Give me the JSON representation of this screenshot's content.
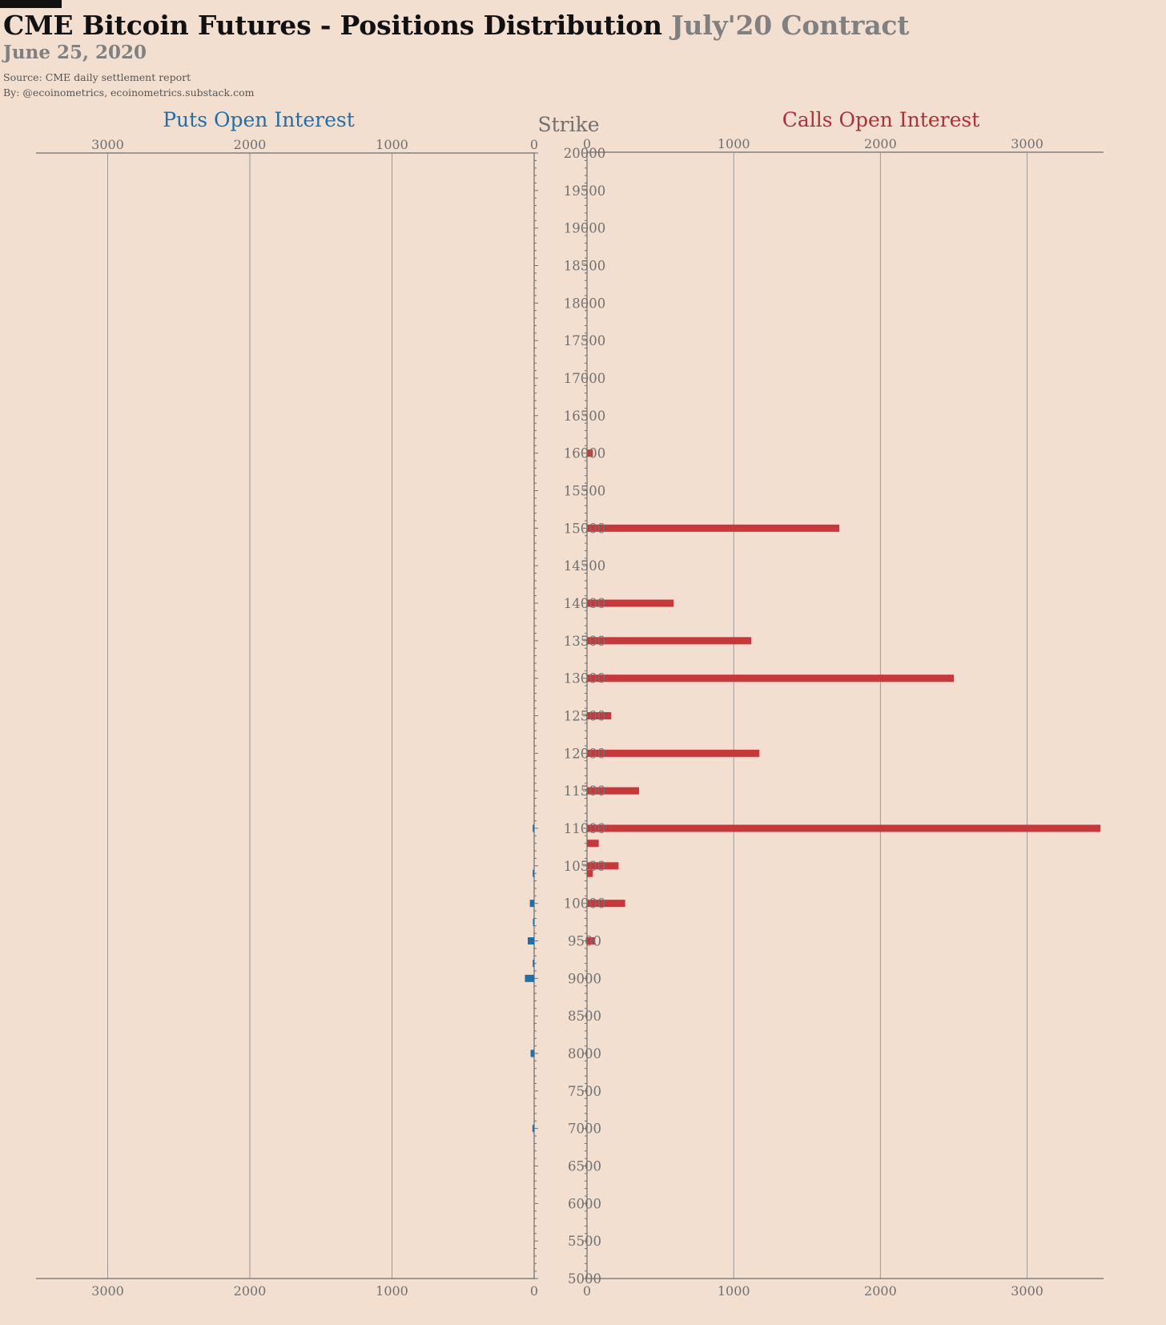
{
  "header": {
    "title_main": "CME Bitcoin Futures - Positions Distribution",
    "title_contract": "July'20 Contract",
    "date": "June 25, 2020",
    "source": "Source: CME daily settlement report",
    "byline": "By: @ecoinometrics, ecoinometrics.substack.com"
  },
  "chart_data": {
    "type": "bar",
    "orientation": "horizontal-butterfly",
    "puts_label": "Puts Open Interest",
    "calls_label": "Calls Open Interest",
    "strike_label": "Strike",
    "strike_range": [
      5000,
      20000
    ],
    "strike_ticks": [
      20000,
      19500,
      19000,
      18500,
      18000,
      17500,
      17000,
      16500,
      16000,
      15500,
      15000,
      14500,
      14000,
      13500,
      13000,
      12500,
      12000,
      11500,
      11000,
      10500,
      10000,
      9500,
      9000,
      8500,
      8000,
      7500,
      7000,
      6500,
      6000,
      5500,
      5000
    ],
    "oi_ticks": [
      0,
      1000,
      2000,
      3000
    ],
    "oi_range": [
      0,
      3500
    ],
    "grid": true,
    "colors": {
      "puts": "#1f6fa8",
      "calls": "#c8373a",
      "axis": "#8a8a8a",
      "grid": "#9a9a9a"
    },
    "calls": [
      {
        "strike": 16000,
        "oi": 40
      },
      {
        "strike": 15000,
        "oi": 1720
      },
      {
        "strike": 14000,
        "oi": 590
      },
      {
        "strike": 13500,
        "oi": 1120
      },
      {
        "strike": 13000,
        "oi": 2500
      },
      {
        "strike": 12500,
        "oi": 165
      },
      {
        "strike": 12000,
        "oi": 1175
      },
      {
        "strike": 11500,
        "oi": 355
      },
      {
        "strike": 11000,
        "oi": 3500
      },
      {
        "strike": 10800,
        "oi": 80
      },
      {
        "strike": 10500,
        "oi": 215
      },
      {
        "strike": 10400,
        "oi": 40
      },
      {
        "strike": 10000,
        "oi": 260
      },
      {
        "strike": 9500,
        "oi": 55
      }
    ],
    "puts": [
      {
        "strike": 11000,
        "oi": 10
      },
      {
        "strike": 10400,
        "oi": 10
      },
      {
        "strike": 10000,
        "oi": 30
      },
      {
        "strike": 9750,
        "oi": 8
      },
      {
        "strike": 9500,
        "oi": 45
      },
      {
        "strike": 9200,
        "oi": 10
      },
      {
        "strike": 9000,
        "oi": 65
      },
      {
        "strike": 8000,
        "oi": 25
      },
      {
        "strike": 7000,
        "oi": 12
      }
    ]
  }
}
